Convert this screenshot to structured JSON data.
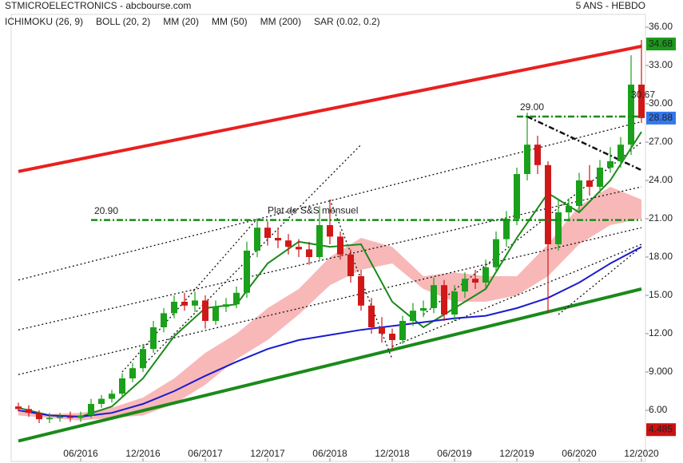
{
  "chart_data": {
    "type": "candlestick",
    "title": "STMICROELECTRONICS - abcbourse.com",
    "subtitle": "5 ANS - HEBDO",
    "legend": [
      {
        "label": "ICHIMOKU (26, 9)",
        "color": "#1a1aa0"
      },
      {
        "label": "BOLL (20, 2)",
        "color": "#d040d0"
      },
      {
        "label": "MM (20)",
        "color": "#1a8a1a"
      },
      {
        "label": "MM (50)",
        "color": "#e01818"
      },
      {
        "label": "MM (200)",
        "color": "#1a1ad0"
      },
      {
        "label": "SAR (0.02, 0.2)",
        "color": "#e01818"
      }
    ],
    "categories": [
      "12/2015",
      "01/2016",
      "02/2016",
      "03/2016",
      "04/2016",
      "05/2016",
      "06/2016",
      "07/2016",
      "08/2016",
      "09/2016",
      "10/2016",
      "11/2016",
      "12/2016",
      "01/2017",
      "02/2017",
      "03/2017",
      "04/2017",
      "05/2017",
      "06/2017",
      "07/2017",
      "08/2017",
      "09/2017",
      "10/2017",
      "11/2017",
      "12/2017",
      "01/2018",
      "02/2018",
      "03/2018",
      "04/2018",
      "05/2018",
      "06/2018",
      "07/2018",
      "08/2018",
      "09/2018",
      "10/2018",
      "11/2018",
      "12/2018",
      "01/2019",
      "02/2019",
      "03/2019",
      "04/2019",
      "05/2019",
      "06/2019",
      "07/2019",
      "08/2019",
      "09/2019",
      "10/2019",
      "11/2019",
      "12/2019",
      "01/2020",
      "02/2020",
      "03/2020",
      "04/2020",
      "05/2020",
      "06/2020",
      "07/2020",
      "08/2020",
      "09/2020",
      "10/2020",
      "11/2020",
      "12/2020"
    ],
    "open": [
      6.3,
      6.1,
      5.8,
      5.3,
      5.4,
      5.5,
      5.4,
      5.6,
      6.5,
      6.9,
      7.3,
      8.5,
      9.3,
      10.8,
      12.5,
      13.6,
      14.5,
      14.2,
      14.6,
      13.0,
      14.1,
      14.3,
      15.2,
      18.5,
      20.3,
      19.5,
      19.3,
      18.8,
      18.6,
      18.0,
      20.5,
      19.6,
      18.2,
      16.5,
      14.2,
      12.5,
      12.0,
      11.5,
      13.0,
      13.8,
      14.0,
      15.8,
      13.5,
      15.3,
      16.3,
      16.0,
      17.2,
      19.4,
      21.0,
      24.5,
      26.8,
      25.2,
      19.0,
      21.5,
      22.0,
      24.0,
      23.5,
      25.0,
      25.5,
      26.8,
      31.5
    ],
    "high": [
      6.6,
      6.4,
      6.0,
      5.8,
      5.8,
      5.9,
      5.9,
      6.9,
      7.2,
      7.6,
      8.9,
      9.7,
      11.2,
      13.0,
      14.0,
      15.0,
      15.2,
      15.3,
      15.0,
      14.6,
      14.8,
      15.7,
      19.2,
      21.0,
      20.8,
      20.3,
      19.8,
      19.4,
      19.2,
      22.0,
      22.5,
      20.0,
      18.6,
      17.0,
      14.8,
      13.3,
      12.4,
      13.4,
      14.4,
      14.6,
      16.4,
      16.2,
      15.8,
      16.8,
      17.0,
      17.8,
      20.0,
      21.6,
      25.0,
      29.3,
      27.5,
      25.5,
      22.5,
      22.6,
      24.6,
      25.2,
      25.6,
      26.6,
      27.4,
      33.8,
      35.0
    ],
    "low": [
      5.9,
      5.5,
      5.0,
      5.0,
      5.1,
      5.1,
      5.1,
      5.4,
      6.2,
      6.6,
      7.0,
      8.2,
      9.0,
      10.5,
      12.1,
      13.2,
      13.8,
      13.7,
      12.4,
      12.7,
      13.7,
      14.0,
      14.8,
      18.0,
      18.9,
      18.7,
      18.2,
      18.0,
      17.4,
      17.8,
      19.0,
      17.8,
      16.0,
      13.8,
      12.0,
      11.3,
      10.7,
      11.2,
      12.6,
      13.3,
      13.6,
      13.0,
      13.0,
      14.8,
      15.5,
      15.6,
      16.8,
      18.8,
      20.5,
      24.0,
      24.5,
      13.6,
      18.5,
      20.8,
      21.5,
      22.8,
      23.0,
      24.6,
      25.0,
      26.0,
      28.5
    ],
    "close": [
      6.1,
      5.8,
      5.3,
      5.4,
      5.5,
      5.4,
      5.6,
      6.5,
      6.9,
      7.3,
      8.5,
      9.3,
      10.8,
      12.5,
      13.6,
      14.5,
      14.2,
      14.6,
      13.0,
      14.1,
      14.3,
      15.2,
      18.5,
      20.3,
      19.5,
      19.3,
      18.8,
      18.6,
      18.0,
      20.5,
      19.6,
      18.2,
      16.5,
      14.2,
      12.5,
      12.0,
      11.5,
      13.0,
      13.8,
      14.0,
      15.8,
      13.5,
      15.3,
      16.3,
      16.0,
      17.2,
      19.4,
      21.0,
      24.5,
      26.8,
      25.2,
      19.0,
      21.5,
      22.0,
      24.0,
      23.5,
      25.0,
      25.5,
      26.8,
      31.5,
      28.88
    ],
    "up_color": "#1aa01a",
    "down_color": "#d01818",
    "series": [
      {
        "name": "MM (20)",
        "color": "#1a8a1a",
        "x": [
          "12/2015",
          "03/2016",
          "06/2016",
          "09/2016",
          "12/2016",
          "03/2017",
          "06/2017",
          "09/2017",
          "12/2017",
          "03/2018",
          "06/2018",
          "09/2018",
          "12/2018",
          "03/2019",
          "06/2019",
          "09/2019",
          "12/2019",
          "03/2020",
          "06/2020",
          "09/2020",
          "12/2020"
        ],
        "values": [
          6.2,
          5.6,
          5.5,
          6.3,
          8.5,
          11.8,
          14.0,
          14.3,
          17.5,
          19.2,
          18.8,
          19.0,
          14.5,
          12.5,
          14.0,
          15.5,
          19.5,
          23.0,
          21.5,
          24.0,
          27.8
        ]
      },
      {
        "name": "MM (200)",
        "color": "#1a1ad0",
        "x": [
          "12/2015",
          "03/2016",
          "06/2016",
          "09/2016",
          "12/2016",
          "03/2017",
          "06/2017",
          "09/2017",
          "12/2017",
          "03/2018",
          "06/2018",
          "09/2018",
          "12/2018",
          "03/2019",
          "06/2019",
          "09/2019",
          "12/2019",
          "03/2020",
          "06/2020",
          "09/2020",
          "12/2020"
        ],
        "values": [
          6.0,
          5.6,
          5.5,
          5.8,
          6.5,
          7.5,
          8.7,
          9.8,
          10.8,
          11.5,
          11.9,
          12.3,
          12.6,
          12.9,
          13.2,
          13.4,
          14.0,
          14.8,
          16.0,
          17.5,
          18.8
        ]
      }
    ],
    "cloud": {
      "color": "#f5a0a0",
      "x": [
        "12/2015",
        "03/2016",
        "06/2016",
        "09/2016",
        "12/2016",
        "03/2017",
        "06/2017",
        "09/2017",
        "12/2017",
        "03/2018",
        "06/2018",
        "09/2018",
        "12/2018",
        "03/2019",
        "06/2019",
        "09/2019",
        "12/2019",
        "03/2020",
        "06/2020",
        "09/2020",
        "12/2020"
      ],
      "upper": [
        5.9,
        5.7,
        5.8,
        6.2,
        7.0,
        8.5,
        10.5,
        12.0,
        14.0,
        15.5,
        18.0,
        19.5,
        18.8,
        16.5,
        16.8,
        16.5,
        16.5,
        19.0,
        22.0,
        23.5,
        22.5
      ],
      "lower": [
        5.6,
        5.4,
        5.2,
        5.4,
        5.6,
        6.5,
        8.0,
        10.0,
        11.5,
        13.5,
        15.8,
        17.0,
        17.5,
        15.5,
        14.5,
        14.5,
        15.0,
        16.5,
        19.0,
        20.5,
        21.0
      ]
    },
    "trendlines": [
      {
        "style": "solid",
        "color": "#e82020",
        "x": [
          "12/2015",
          "12/2020"
        ],
        "y": [
          24.7,
          34.5
        ]
      },
      {
        "style": "solid",
        "color": "#1a8a1a",
        "x": [
          "12/2015",
          "12/2020"
        ],
        "y": [
          3.6,
          15.5
        ]
      },
      {
        "style": "dotted",
        "color": "#111111",
        "x": [
          "12/2015",
          "12/2020"
        ],
        "y": [
          16.2,
          28.6
        ]
      },
      {
        "style": "dotted",
        "color": "#111111",
        "x": [
          "12/2015",
          "12/2020"
        ],
        "y": [
          12.3,
          23.5
        ]
      },
      {
        "style": "dotted",
        "color": "#111111",
        "x": [
          "12/2015",
          "12/2020"
        ],
        "y": [
          8.8,
          20.3
        ]
      },
      {
        "style": "dotted",
        "color": "#111111",
        "x": [
          "12/2016",
          "09/2018"
        ],
        "y": [
          9.5,
          26.8
        ]
      },
      {
        "style": "dotted",
        "color": "#111111",
        "x": [
          "10/2016",
          "11/2017"
        ],
        "y": [
          9.0,
          21.0
        ]
      },
      {
        "style": "dotted",
        "color": "#111111",
        "x": [
          "06/2018",
          "12/2018"
        ],
        "y": [
          22.5,
          10.0
        ]
      },
      {
        "style": "dotted",
        "color": "#111111",
        "x": [
          "12/2018",
          "12/2020"
        ],
        "y": [
          11.0,
          19.0
        ]
      },
      {
        "style": "dotted",
        "color": "#111111",
        "x": [
          "03/2019",
          "12/2020"
        ],
        "y": [
          13.5,
          27.0
        ]
      },
      {
        "style": "dashed",
        "color": "#111111",
        "x": [
          "01/2020",
          "12/2020"
        ],
        "y": [
          29.0,
          24.8
        ]
      },
      {
        "style": "dotted",
        "color": "#111111",
        "x": [
          "04/2020",
          "12/2020"
        ],
        "y": [
          13.5,
          18.8
        ]
      }
    ],
    "levels": [
      {
        "value": 20.9,
        "label": "20.90",
        "x": [
          "07/2016",
          "12/2020"
        ],
        "color": "#1a8a1a"
      },
      {
        "value": 29,
        "label": "29.00",
        "x": [
          "12/2019",
          "12/2020"
        ],
        "color": "#1a8a1a"
      }
    ],
    "annotations": [
      {
        "text": "Plat de S&S mensuel",
        "x": "12/2017",
        "y": 21.6,
        "color": "#1a8a1a"
      },
      {
        "text": "30.67",
        "x": "11/2020",
        "y": 30.67,
        "color": "#111111"
      }
    ],
    "price_boxes": [
      {
        "value": 34.68,
        "color": "#1a9a1a"
      },
      {
        "value": 28.88,
        "color": "#3377ee"
      },
      {
        "value": 4.485,
        "color": "#cc1111"
      }
    ],
    "ylim": [
      2,
      37
    ],
    "yticks": [
      {
        "value": 6,
        "label": "6.00"
      },
      {
        "value": 9,
        "label": "9.000"
      },
      {
        "value": 12,
        "label": "12.00"
      },
      {
        "value": 15,
        "label": "15.00"
      },
      {
        "value": 18,
        "label": "18.00"
      },
      {
        "value": 21,
        "label": "21.00"
      },
      {
        "value": 24,
        "label": "24.00"
      },
      {
        "value": 27,
        "label": "27.00"
      },
      {
        "value": 30,
        "label": "30.00"
      },
      {
        "value": 33,
        "label": "33.00"
      },
      {
        "value": 36,
        "label": "36.00"
      }
    ],
    "xticks": [
      "06/2016",
      "12/2016",
      "06/2017",
      "12/2017",
      "06/2018",
      "12/2018",
      "06/2019",
      "12/2019",
      "06/2020",
      "12/2020"
    ]
  }
}
